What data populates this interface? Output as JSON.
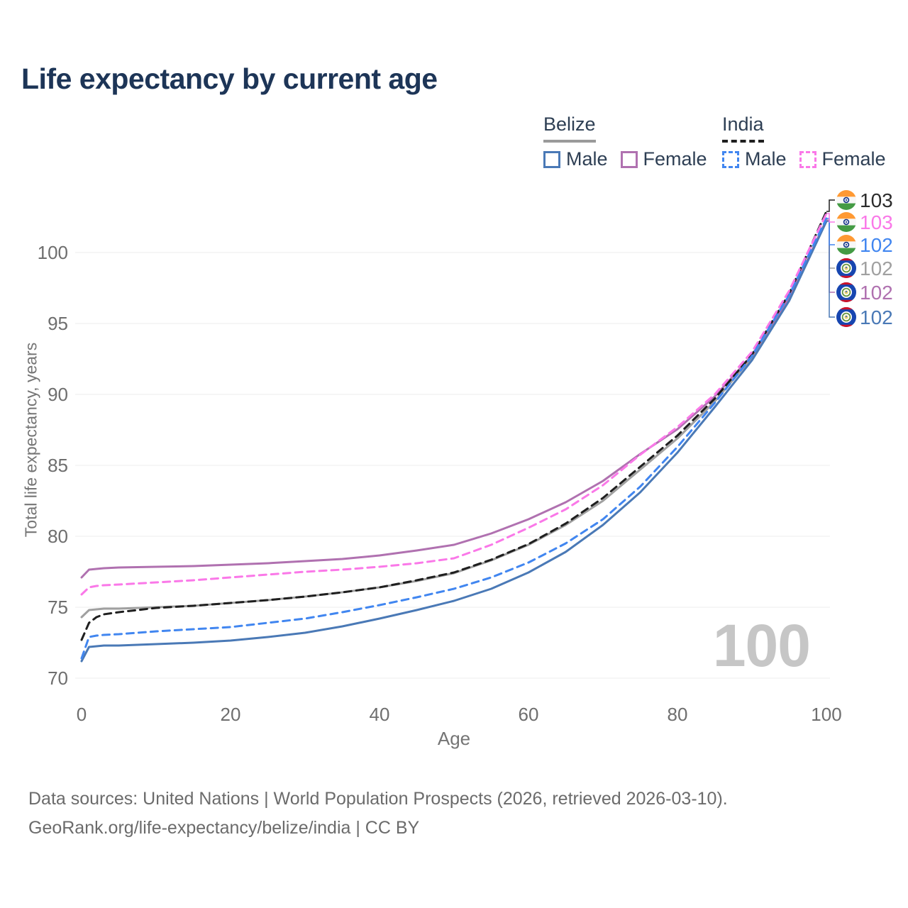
{
  "header": {
    "title": "Life expectancy by current age"
  },
  "legend": {
    "groups": [
      {
        "id": "belize",
        "label": "Belize",
        "line_color": "#9a9a9a",
        "line_style": "solid",
        "items": [
          {
            "id": "belize-male",
            "label": "Male",
            "color": "#4a79b6",
            "style": "solid"
          },
          {
            "id": "belize-female",
            "label": "Female",
            "color": "#b071b0",
            "style": "solid"
          }
        ]
      },
      {
        "id": "india",
        "label": "India",
        "line_color": "#1f1f1f",
        "line_style": "dashed",
        "items": [
          {
            "id": "india-male",
            "label": "Male",
            "color": "#4186f0",
            "style": "dashed"
          },
          {
            "id": "india-female",
            "label": "Female",
            "color": "#fa78e8",
            "style": "dashed"
          }
        ]
      }
    ]
  },
  "chart_data": {
    "type": "line",
    "title": "Life expectancy by current age",
    "xlabel": "Age",
    "ylabel": "Total life expectancy, years",
    "x_ticks": [
      0,
      20,
      40,
      60,
      80,
      100
    ],
    "y_ticks": [
      70,
      75,
      80,
      85,
      90,
      95,
      100
    ],
    "xlim": [
      0,
      100
    ],
    "ylim": [
      70,
      103.5
    ],
    "grid": "horizontal",
    "legend_position": "top-right",
    "watermark": "100",
    "ages": [
      0,
      1,
      2,
      3,
      5,
      10,
      15,
      20,
      25,
      30,
      35,
      40,
      45,
      50,
      55,
      60,
      65,
      70,
      75,
      80,
      85,
      90,
      95,
      100
    ],
    "series": [
      {
        "id": "belize-both",
        "name": "Belize",
        "sex": "Both sexes",
        "flag": "belize",
        "color": "#a0a0a0",
        "dash": "solid",
        "end_label": "102",
        "label_row": 3,
        "values": [
          74.3,
          74.8,
          74.85,
          74.9,
          74.9,
          75.0,
          75.1,
          75.3,
          75.5,
          75.75,
          76.05,
          76.4,
          76.85,
          77.4,
          78.3,
          79.4,
          80.8,
          82.5,
          84.7,
          86.9,
          89.5,
          92.6,
          96.8,
          102.3
        ]
      },
      {
        "id": "belize-female",
        "name": "Belize",
        "sex": "Female",
        "flag": "belize",
        "color": "#b071b0",
        "dash": "solid",
        "end_label": "102",
        "label_row": 4,
        "values": [
          77.1,
          77.65,
          77.7,
          77.75,
          77.8,
          77.85,
          77.9,
          78.0,
          78.1,
          78.25,
          78.4,
          78.65,
          79.0,
          79.4,
          80.2,
          81.2,
          82.4,
          83.9,
          85.8,
          87.55,
          89.85,
          92.75,
          96.85,
          102.25
        ]
      },
      {
        "id": "belize-male",
        "name": "Belize",
        "sex": "Male",
        "flag": "belize",
        "color": "#4a79b6",
        "dash": "solid",
        "end_label": "102",
        "label_row": 5,
        "values": [
          71.2,
          72.2,
          72.25,
          72.3,
          72.3,
          72.4,
          72.5,
          72.65,
          72.9,
          73.2,
          73.65,
          74.2,
          74.8,
          75.45,
          76.3,
          77.45,
          78.9,
          80.8,
          83.1,
          85.9,
          89.1,
          92.4,
          96.6,
          102.2
        ]
      },
      {
        "id": "india-both",
        "name": "India",
        "sex": "Both sexes",
        "flag": "india",
        "color": "#1f1f1f",
        "dash": "dashed",
        "end_label": "103",
        "label_row": 0,
        "values": [
          72.7,
          73.9,
          74.3,
          74.5,
          74.65,
          74.95,
          75.1,
          75.3,
          75.5,
          75.75,
          76.05,
          76.4,
          76.9,
          77.45,
          78.35,
          79.45,
          80.9,
          82.7,
          84.9,
          87.1,
          89.7,
          92.8,
          97.1,
          102.9
        ]
      },
      {
        "id": "india-male",
        "name": "India",
        "sex": "Male",
        "flag": "india",
        "color": "#4186f0",
        "dash": "dashed",
        "end_label": "102",
        "label_row": 2,
        "values": [
          71.4,
          72.9,
          73.0,
          73.05,
          73.1,
          73.3,
          73.45,
          73.6,
          73.9,
          74.2,
          74.65,
          75.15,
          75.7,
          76.3,
          77.1,
          78.15,
          79.5,
          81.2,
          83.5,
          86.3,
          89.4,
          92.7,
          97.0,
          102.4
        ]
      },
      {
        "id": "india-female",
        "name": "India",
        "sex": "Female",
        "flag": "india",
        "color": "#fa78e8",
        "dash": "dashed",
        "end_label": "103",
        "label_row": 1,
        "values": [
          75.9,
          76.4,
          76.5,
          76.55,
          76.6,
          76.75,
          76.9,
          77.1,
          77.3,
          77.5,
          77.65,
          77.85,
          78.1,
          78.45,
          79.4,
          80.6,
          81.9,
          83.6,
          85.75,
          87.7,
          90.0,
          93.0,
          97.3,
          102.75
        ]
      }
    ]
  },
  "footer": {
    "line1": "Data sources: United Nations | World Population Prospects (2026, retrieved 2026-03-10).",
    "line2": "GeoRank.org/life-expectancy/belize/india | CC BY"
  }
}
